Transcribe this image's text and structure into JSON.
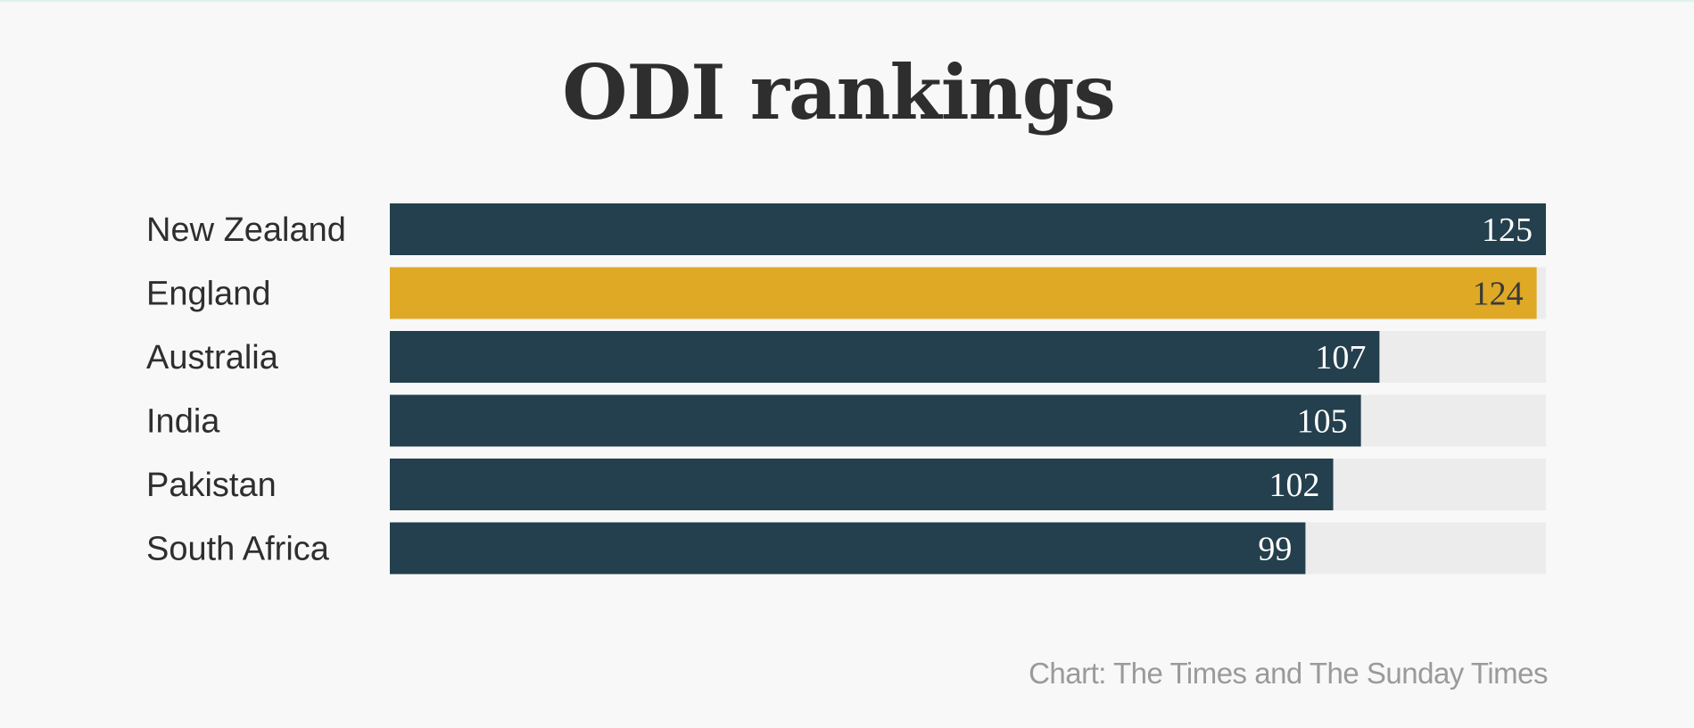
{
  "title": "ODI rankings",
  "source": "Chart: The Times and The Sunday Times",
  "colors": {
    "default_bar": "#243f4d",
    "highlight_bar": "#dfa926",
    "track": "#ececec",
    "label_text": "#2e2e2e",
    "value_on_dark": "#ffffff",
    "value_on_highlight": "#3a3a3a"
  },
  "chart_data": {
    "type": "bar",
    "orientation": "horizontal",
    "title": "ODI rankings",
    "categories": [
      "New Zealand",
      "England",
      "Australia",
      "India",
      "Pakistan",
      "South Africa"
    ],
    "values": [
      125,
      124,
      107,
      105,
      102,
      99
    ],
    "highlight": "England",
    "xlim": [
      0,
      125
    ],
    "grid": false,
    "data_labels": true
  }
}
